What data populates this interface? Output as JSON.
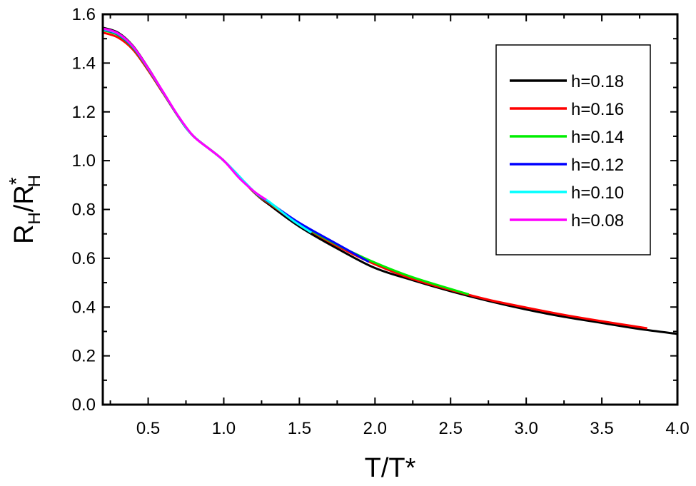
{
  "chart_data": {
    "type": "line",
    "xlabel": "T/T*",
    "ylabel_main": "R",
    "ylabel_sub": "H",
    "ylabel_slash": "/R",
    "ylabel_sup": "*",
    "xlim": [
      0.2,
      4.0
    ],
    "ylim": [
      0.0,
      1.6
    ],
    "xticks": [
      0.5,
      1.0,
      1.5,
      2.0,
      2.5,
      3.0,
      3.5,
      4.0
    ],
    "xtick_labels": [
      "0.5",
      "1.0",
      "1.5",
      "2.0",
      "2.5",
      "3.0",
      "3.5",
      "4.0"
    ],
    "yticks": [
      0.0,
      0.2,
      0.4,
      0.6,
      0.8,
      1.0,
      1.2,
      1.4,
      1.6
    ],
    "ytick_labels": [
      "0.0",
      "0.2",
      "0.4",
      "0.6",
      "0.8",
      "1.0",
      "1.2",
      "1.4",
      "1.6"
    ],
    "legend_position": "top-right",
    "grid": false,
    "series": [
      {
        "name": "h=0.18",
        "color": "#000000",
        "x": [
          0.2,
          0.3,
          0.4,
          0.5,
          0.6,
          0.7,
          0.8,
          1.0,
          1.2,
          1.3,
          1.5,
          1.75,
          2.0,
          2.25,
          2.5,
          2.75,
          3.0,
          3.25,
          3.5,
          3.75,
          4.0
        ],
        "y": [
          1.545,
          1.525,
          1.47,
          1.38,
          1.28,
          1.18,
          1.1,
          1.0,
          0.87,
          0.82,
          0.73,
          0.64,
          0.56,
          0.51,
          0.465,
          0.425,
          0.39,
          0.36,
          0.335,
          0.31,
          0.29
        ]
      },
      {
        "name": "h=0.16",
        "color": "#ff0000",
        "x": [
          0.2,
          0.3,
          0.4,
          0.5,
          0.6,
          0.7,
          0.8,
          1.0,
          1.2,
          1.3,
          1.5,
          1.75,
          2.0,
          2.25,
          2.5,
          2.75,
          3.0,
          3.25,
          3.5,
          3.8
        ],
        "y": [
          1.525,
          1.505,
          1.455,
          1.37,
          1.275,
          1.18,
          1.1,
          1.0,
          0.87,
          0.825,
          0.74,
          0.65,
          0.575,
          0.515,
          0.47,
          0.43,
          0.398,
          0.368,
          0.342,
          0.313
        ]
      },
      {
        "name": "h=0.14",
        "color": "#00ee00",
        "x": [
          0.2,
          0.3,
          0.4,
          0.5,
          0.6,
          0.7,
          0.8,
          1.0,
          1.2,
          1.3,
          1.5,
          1.75,
          2.0,
          2.25,
          2.62
        ],
        "y": [
          1.535,
          1.515,
          1.462,
          1.375,
          1.278,
          1.18,
          1.1,
          1.0,
          0.872,
          0.828,
          0.742,
          0.655,
          0.582,
          0.522,
          0.452
        ]
      },
      {
        "name": "h=0.12",
        "color": "#0000ff",
        "x": [
          0.2,
          0.3,
          0.4,
          0.5,
          0.6,
          0.7,
          0.8,
          1.0,
          1.2,
          1.3,
          1.5,
          1.75,
          1.96
        ],
        "y": [
          1.538,
          1.518,
          1.465,
          1.377,
          1.279,
          1.181,
          1.1,
          1.0,
          0.873,
          0.83,
          0.745,
          0.658,
          0.585
        ]
      },
      {
        "name": "h=0.10",
        "color": "#00ffff",
        "x": [
          0.2,
          0.3,
          0.4,
          0.5,
          0.6,
          0.7,
          0.8,
          1.0,
          1.2,
          1.3,
          1.45,
          1.58
        ],
        "y": [
          1.54,
          1.52,
          1.467,
          1.378,
          1.28,
          1.182,
          1.1,
          1.0,
          0.874,
          0.832,
          0.758,
          0.705
        ]
      },
      {
        "name": "h=0.08",
        "color": "#ff00ff",
        "x": [
          0.2,
          0.3,
          0.4,
          0.5,
          0.6,
          0.7,
          0.8,
          0.9,
          1.0,
          1.1,
          1.2,
          1.28
        ],
        "y": [
          1.542,
          1.522,
          1.468,
          1.379,
          1.281,
          1.182,
          1.1,
          1.05,
          1.0,
          0.93,
          0.874,
          0.84
        ]
      }
    ]
  }
}
